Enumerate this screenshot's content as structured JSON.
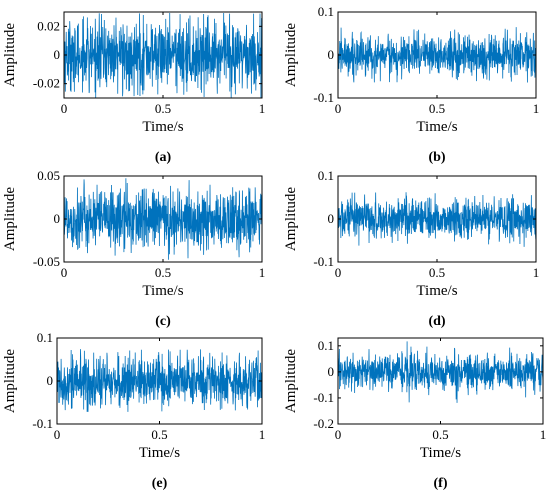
{
  "chart_data": [
    {
      "type": "line",
      "panel": "(a)",
      "xlabel": "Time/s",
      "ylabel": "Amplitude",
      "xlim": [
        0,
        1
      ],
      "ylim": [
        -0.03,
        0.03
      ],
      "xticks": [
        "0",
        "0.5",
        "1"
      ],
      "yticks": [
        "0.02",
        "0",
        "-0.02"
      ],
      "ytick_values": [
        0.02,
        0,
        -0.02
      ],
      "series": [
        {
          "amplitude": 0.012,
          "peak": 0.03
        }
      ]
    },
    {
      "type": "line",
      "panel": "(b)",
      "xlabel": "Time/s",
      "ylabel": "Amplitude",
      "xlim": [
        0,
        1
      ],
      "ylim": [
        -0.1,
        0.1
      ],
      "xticks": [
        "0",
        "0.5",
        "1"
      ],
      "yticks": [
        "0.1",
        "0",
        "-0.1"
      ],
      "ytick_values": [
        0.1,
        0,
        -0.1
      ],
      "series": [
        {
          "amplitude": 0.025,
          "peak": 0.065
        }
      ]
    },
    {
      "type": "line",
      "panel": "(c)",
      "xlabel": "Time/s",
      "ylabel": "Amplitude",
      "xlim": [
        0,
        1
      ],
      "ylim": [
        -0.05,
        0.05
      ],
      "xticks": [
        "0",
        "0.5",
        "1"
      ],
      "yticks": [
        "0.05",
        "0",
        "-0.05"
      ],
      "ytick_values": [
        0.05,
        0,
        -0.05
      ],
      "series": [
        {
          "amplitude": 0.018,
          "peak": 0.048
        }
      ]
    },
    {
      "type": "line",
      "panel": "(d)",
      "xlabel": "Time/s",
      "ylabel": "Amplitude",
      "xlim": [
        0,
        1
      ],
      "ylim": [
        -0.1,
        0.1
      ],
      "xticks": [
        "0",
        "0.5",
        "1"
      ],
      "yticks": [
        "0.1",
        "0",
        "-0.1"
      ],
      "ytick_values": [
        0.1,
        0,
        -0.1
      ],
      "series": [
        {
          "amplitude": 0.024,
          "peak": 0.065
        }
      ]
    },
    {
      "type": "line",
      "panel": "(e)",
      "xlabel": "Time/s",
      "ylabel": "Amplitude",
      "xlim": [
        0,
        1
      ],
      "ylim": [
        -0.1,
        0.1
      ],
      "xticks": [
        "0",
        "0.5",
        "1"
      ],
      "yticks": [
        "0.1",
        "0",
        "-0.1"
      ],
      "ytick_values": [
        0.1,
        0,
        -0.1
      ],
      "series": [
        {
          "amplitude": 0.03,
          "peak": 0.075
        }
      ]
    },
    {
      "type": "line",
      "panel": "(f)",
      "xlabel": "Time/s",
      "ylabel": "Amplitude",
      "xlim": [
        0,
        1
      ],
      "ylim": [
        -0.2,
        0.13
      ],
      "xticks": [
        "0",
        "0.5",
        "1"
      ],
      "yticks": [
        "0.1",
        "0",
        "-0.1",
        "-0.2"
      ],
      "ytick_values": [
        0.1,
        0,
        -0.1,
        -0.2
      ],
      "series": [
        {
          "amplitude": 0.035,
          "peak": 0.12
        }
      ]
    }
  ],
  "colors": {
    "series": "#0072BD",
    "axis": "#000000",
    "background": "#ffffff"
  },
  "figure": {
    "font": "serif",
    "grid": false,
    "legend": "none"
  }
}
